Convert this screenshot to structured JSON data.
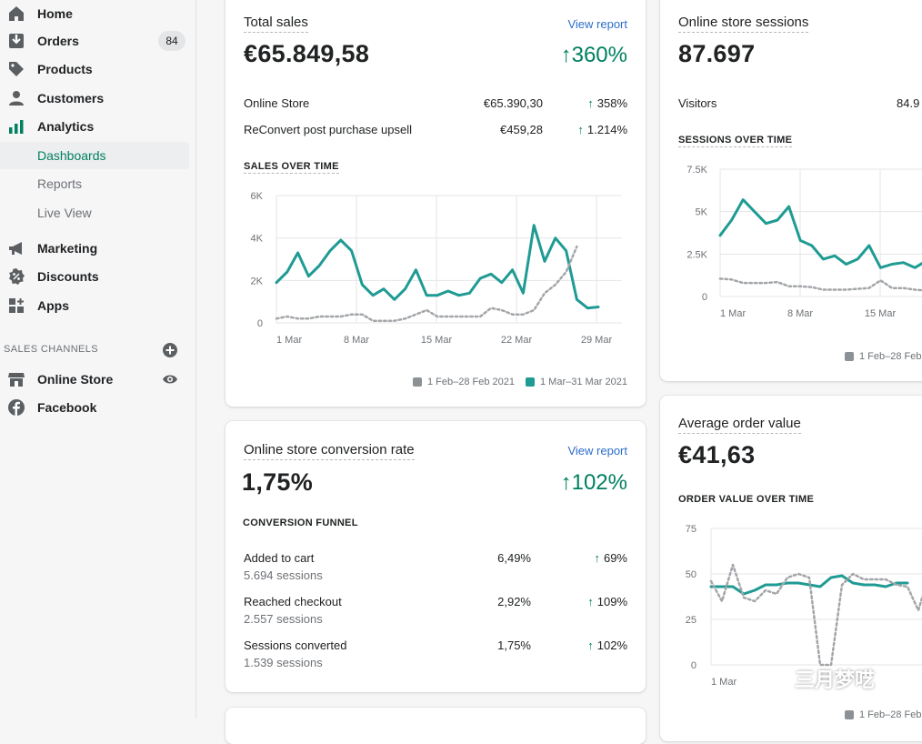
{
  "nav": {
    "home": "Home",
    "orders": "Orders",
    "orders_badge": "84",
    "products": "Products",
    "customers": "Customers",
    "analytics": "Analytics",
    "dashboards": "Dashboards",
    "reports": "Reports",
    "live_view": "Live View",
    "marketing": "Marketing",
    "discounts": "Discounts",
    "apps": "Apps",
    "sales_channels": "SALES CHANNELS",
    "online_store": "Online Store",
    "facebook": "Facebook"
  },
  "colors": {
    "accent": "#008060",
    "teal": "#47c1bf",
    "series_current": "#1f9b94",
    "series_previous": "#a3a6a9"
  },
  "total_sales": {
    "title": "Total sales",
    "view_report": "View report",
    "value": "€65.849,58",
    "change": "360%",
    "rows": [
      {
        "label": "Online Store",
        "value": "€65.390,30",
        "change": "358%"
      },
      {
        "label": "ReConvert post purchase upsell",
        "value": "€459,28",
        "change": "1.214%"
      }
    ],
    "chart_title": "SALES OVER TIME",
    "legend_previous": "1 Feb–28 Feb 2021",
    "legend_current": "1 Mar–31 Mar 2021"
  },
  "conversion": {
    "title": "Online store conversion rate",
    "view_report": "View report",
    "value": "1,75%",
    "change": "102%",
    "funnel_title": "CONVERSION FUNNEL",
    "rows": [
      {
        "label": "Added to cart",
        "sub": "5.694 sessions",
        "value": "6,49%",
        "change": "69%"
      },
      {
        "label": "Reached checkout",
        "sub": "2.557 sessions",
        "value": "2,92%",
        "change": "109%"
      },
      {
        "label": "Sessions converted",
        "sub": "1.539 sessions",
        "value": "1,75%",
        "change": "102%"
      }
    ]
  },
  "sessions": {
    "title": "Online store sessions",
    "value": "87.697",
    "visitors_label": "Visitors",
    "visitors_value": "84.9",
    "chart_title": "SESSIONS OVER TIME",
    "legend_previous": "1 Feb–28 Feb"
  },
  "aov": {
    "title": "Average order value",
    "value": "€41,63",
    "chart_title": "ORDER VALUE OVER TIME",
    "legend_previous": "1 Feb–28 Feb"
  },
  "watermark": "三月梦呓",
  "chart_data": [
    {
      "type": "line",
      "title": "SALES OVER TIME",
      "x_ticks": [
        "1 Mar",
        "8 Mar",
        "15 Mar",
        "22 Mar",
        "29 Mar"
      ],
      "y_ticks": [
        "0",
        "2K",
        "4K",
        "6K"
      ],
      "ylim": [
        0,
        6000
      ],
      "series": [
        {
          "name": "1 Mar–31 Mar 2021",
          "style": "solid",
          "values": [
            1900,
            2400,
            3300,
            2200,
            2700,
            3400,
            3900,
            3400,
            1800,
            1300,
            1600,
            1100,
            1600,
            2500,
            1300,
            1300,
            1500,
            1300,
            1400,
            2100,
            2300,
            1900,
            2500,
            1400,
            4600,
            2900,
            4000,
            3400,
            1100,
            700,
            750
          ]
        },
        {
          "name": "1 Feb–28 Feb 2021",
          "style": "dotted",
          "values": [
            200,
            300,
            200,
            200,
            300,
            300,
            300,
            400,
            400,
            100,
            100,
            100,
            200,
            400,
            600,
            300,
            300,
            300,
            300,
            300,
            700,
            600,
            400,
            400,
            600,
            1400,
            1800,
            2400,
            3600
          ]
        }
      ]
    },
    {
      "type": "line",
      "title": "SESSIONS OVER TIME",
      "x_ticks": [
        "1 Mar",
        "8 Mar",
        "15 Mar"
      ],
      "y_ticks": [
        "0",
        "2.5K",
        "5K",
        "7.5K"
      ],
      "ylim": [
        0,
        7500
      ],
      "series": [
        {
          "name": "current",
          "style": "solid",
          "values": [
            3600,
            4500,
            5700,
            5000,
            4300,
            4500,
            5300,
            3300,
            3000,
            2200,
            2400,
            1900,
            2200,
            3000,
            1700,
            1900,
            2000,
            1700,
            2100
          ]
        },
        {
          "name": "1 Feb–28 Feb",
          "style": "dotted",
          "values": [
            1050,
            1000,
            800,
            800,
            800,
            850,
            600,
            600,
            550,
            400,
            400,
            400,
            450,
            500,
            950,
            500,
            500,
            400,
            350
          ]
        }
      ]
    },
    {
      "type": "line",
      "title": "ORDER VALUE OVER TIME",
      "x_ticks": [
        "1 Mar"
      ],
      "y_ticks": [
        "0",
        "25",
        "50",
        "75"
      ],
      "ylim": [
        0,
        75
      ],
      "series": [
        {
          "name": "current",
          "style": "solid",
          "values": [
            43,
            43,
            43,
            39,
            41,
            44,
            44,
            45,
            45,
            44,
            43,
            48,
            49,
            45,
            44,
            44,
            43,
            45,
            45
          ]
        },
        {
          "name": "1 Feb–28 Feb",
          "style": "dotted",
          "values": [
            46,
            35,
            55,
            37,
            35,
            41,
            39,
            48,
            50,
            48,
            0,
            0,
            44,
            50,
            47,
            47,
            47,
            44,
            43,
            30,
            50
          ]
        }
      ]
    }
  ]
}
